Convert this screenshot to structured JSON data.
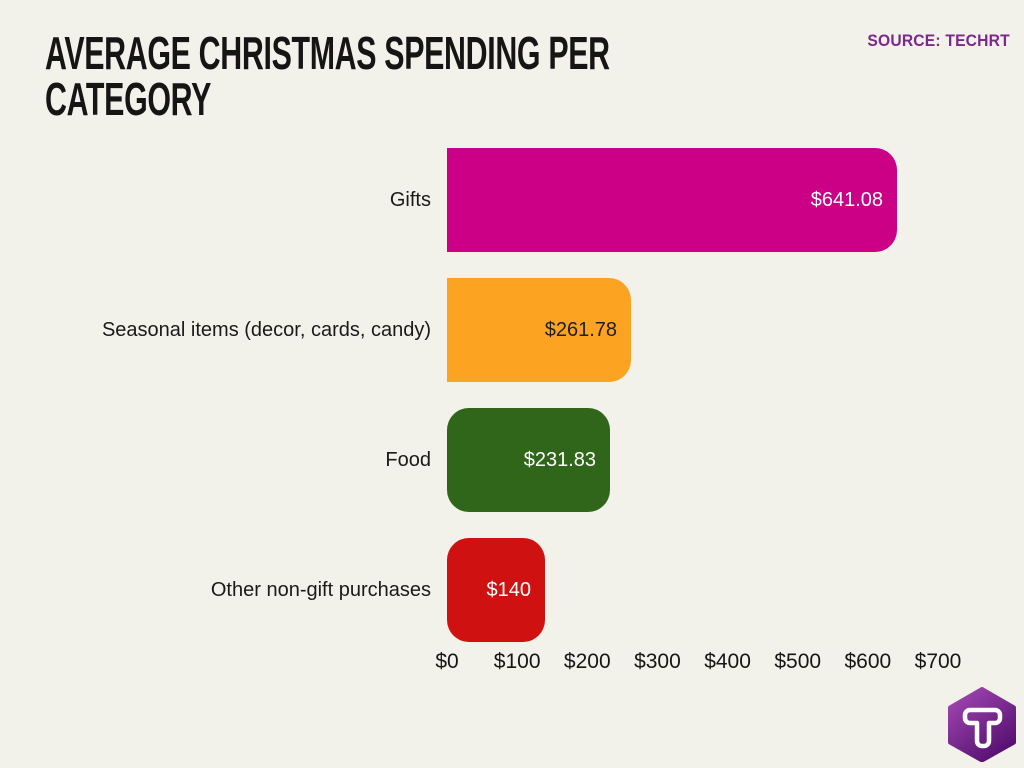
{
  "header": {
    "title_lines": [
      "AVERAGE CHRISTMAS SPENDING PER",
      "CATEGORY"
    ],
    "source": "SOURCE: TECHRT"
  },
  "colors": {
    "background": "#f2f1ea",
    "title_text": "#151515",
    "source_text": "#7b2a8c",
    "category_text": "#1a1a1a",
    "axis_text": "#161616"
  },
  "chart_data": {
    "type": "bar",
    "orientation": "horizontal",
    "title": "AVERAGE CHRISTMAS SPENDING PER CATEGORY",
    "xlabel": "",
    "ylabel": "",
    "grid": false,
    "legend": false,
    "categories": [
      "Gifts",
      "Seasonal items (decor, cards, candy)",
      "Food",
      "Other non-gift purchases"
    ],
    "values": [
      641.08,
      261.78,
      231.83,
      140
    ],
    "value_labels": [
      "$641.08",
      "$261.78",
      "$231.83",
      "$140"
    ],
    "bar_colors": [
      "#cc0087",
      "#fca422",
      "#2f661a",
      "#d01111"
    ],
    "value_label_colors": [
      "#ffffff",
      "#1f1f1f",
      "#ffffff",
      "#ffffff"
    ],
    "rounded_corners": [
      "right",
      "right",
      "all",
      "all"
    ],
    "xlim": [
      0,
      700
    ],
    "x_ticks": [
      0,
      100,
      200,
      300,
      400,
      500,
      600,
      700
    ],
    "x_tick_labels": [
      "$0",
      "$100",
      "$200",
      "$300",
      "$400",
      "$500",
      "$600",
      "$700"
    ]
  },
  "logo": {
    "letter": "T",
    "shape": "hexagon",
    "gradient_top": "#a54ab5",
    "gradient_bottom": "#551070"
  }
}
